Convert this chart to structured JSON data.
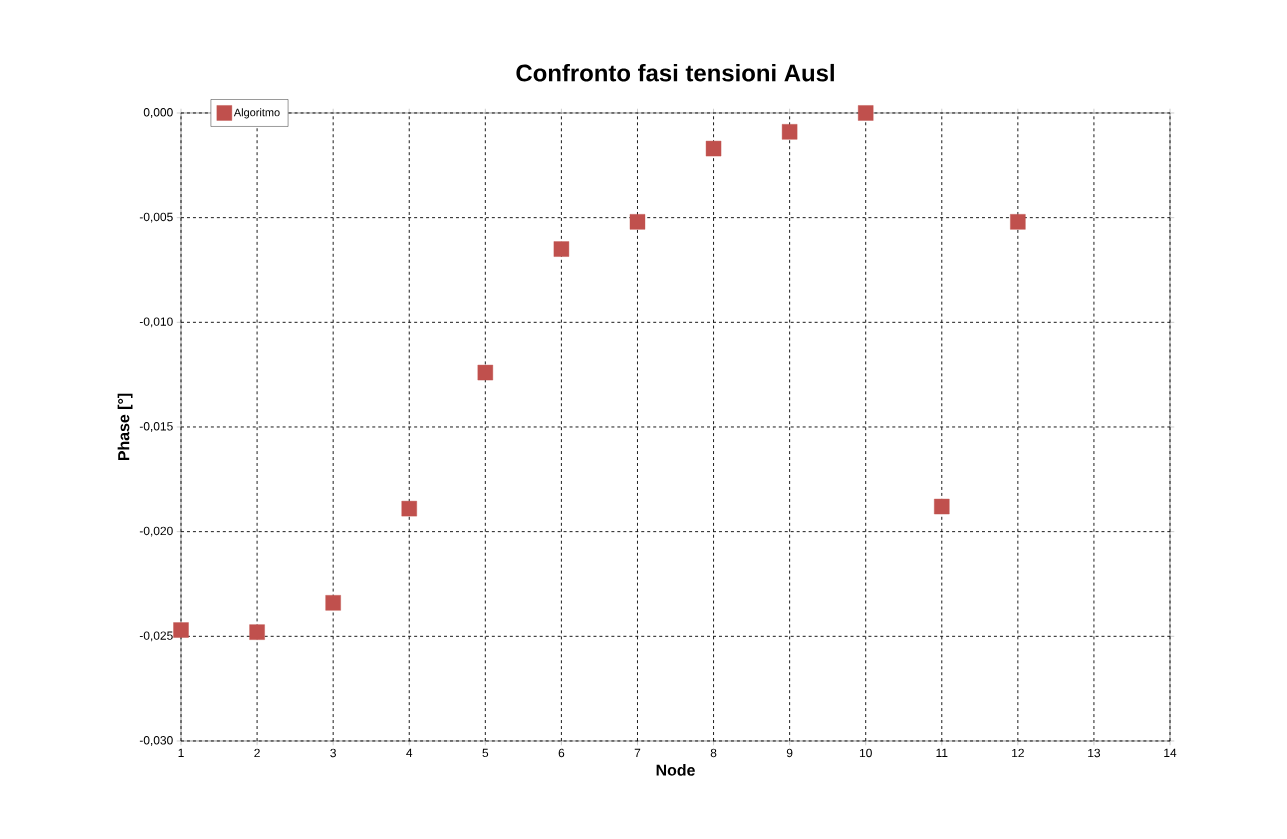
{
  "chart_data": {
    "type": "scatter",
    "title": "Confronto fasi tensioni Ausl",
    "xlabel": "Node",
    "ylabel": "Phase [°]",
    "x": [
      1,
      2,
      3,
      4,
      5,
      6,
      7,
      8,
      9,
      10,
      11,
      12
    ],
    "series": [
      {
        "name": "Algoritmo",
        "color": "#c0504d",
        "values": [
          -0.0247,
          -0.0248,
          -0.0234,
          -0.0189,
          -0.0124,
          -0.0065,
          -0.0052,
          -0.0017,
          -0.0009,
          0.0,
          -0.0188,
          -0.0052
        ]
      }
    ],
    "xlim": [
      1,
      14
    ],
    "xticks": [
      1,
      2,
      3,
      4,
      5,
      6,
      7,
      8,
      9,
      10,
      11,
      12,
      13,
      14
    ],
    "ylim": [
      -0.03,
      0.0
    ],
    "yticks": [
      {
        "value": -0.03,
        "label": "-0,030"
      },
      {
        "value": -0.025,
        "label": "-0,025"
      },
      {
        "value": -0.02,
        "label": "-0,020"
      },
      {
        "value": -0.015,
        "label": "-0,015"
      },
      {
        "value": -0.01,
        "label": "-0,010"
      },
      {
        "value": -0.005,
        "label": "-0,005"
      },
      {
        "value": 0.0,
        "label": "0,000"
      }
    ],
    "grid": true,
    "legend": "top left",
    "marker": "square"
  }
}
